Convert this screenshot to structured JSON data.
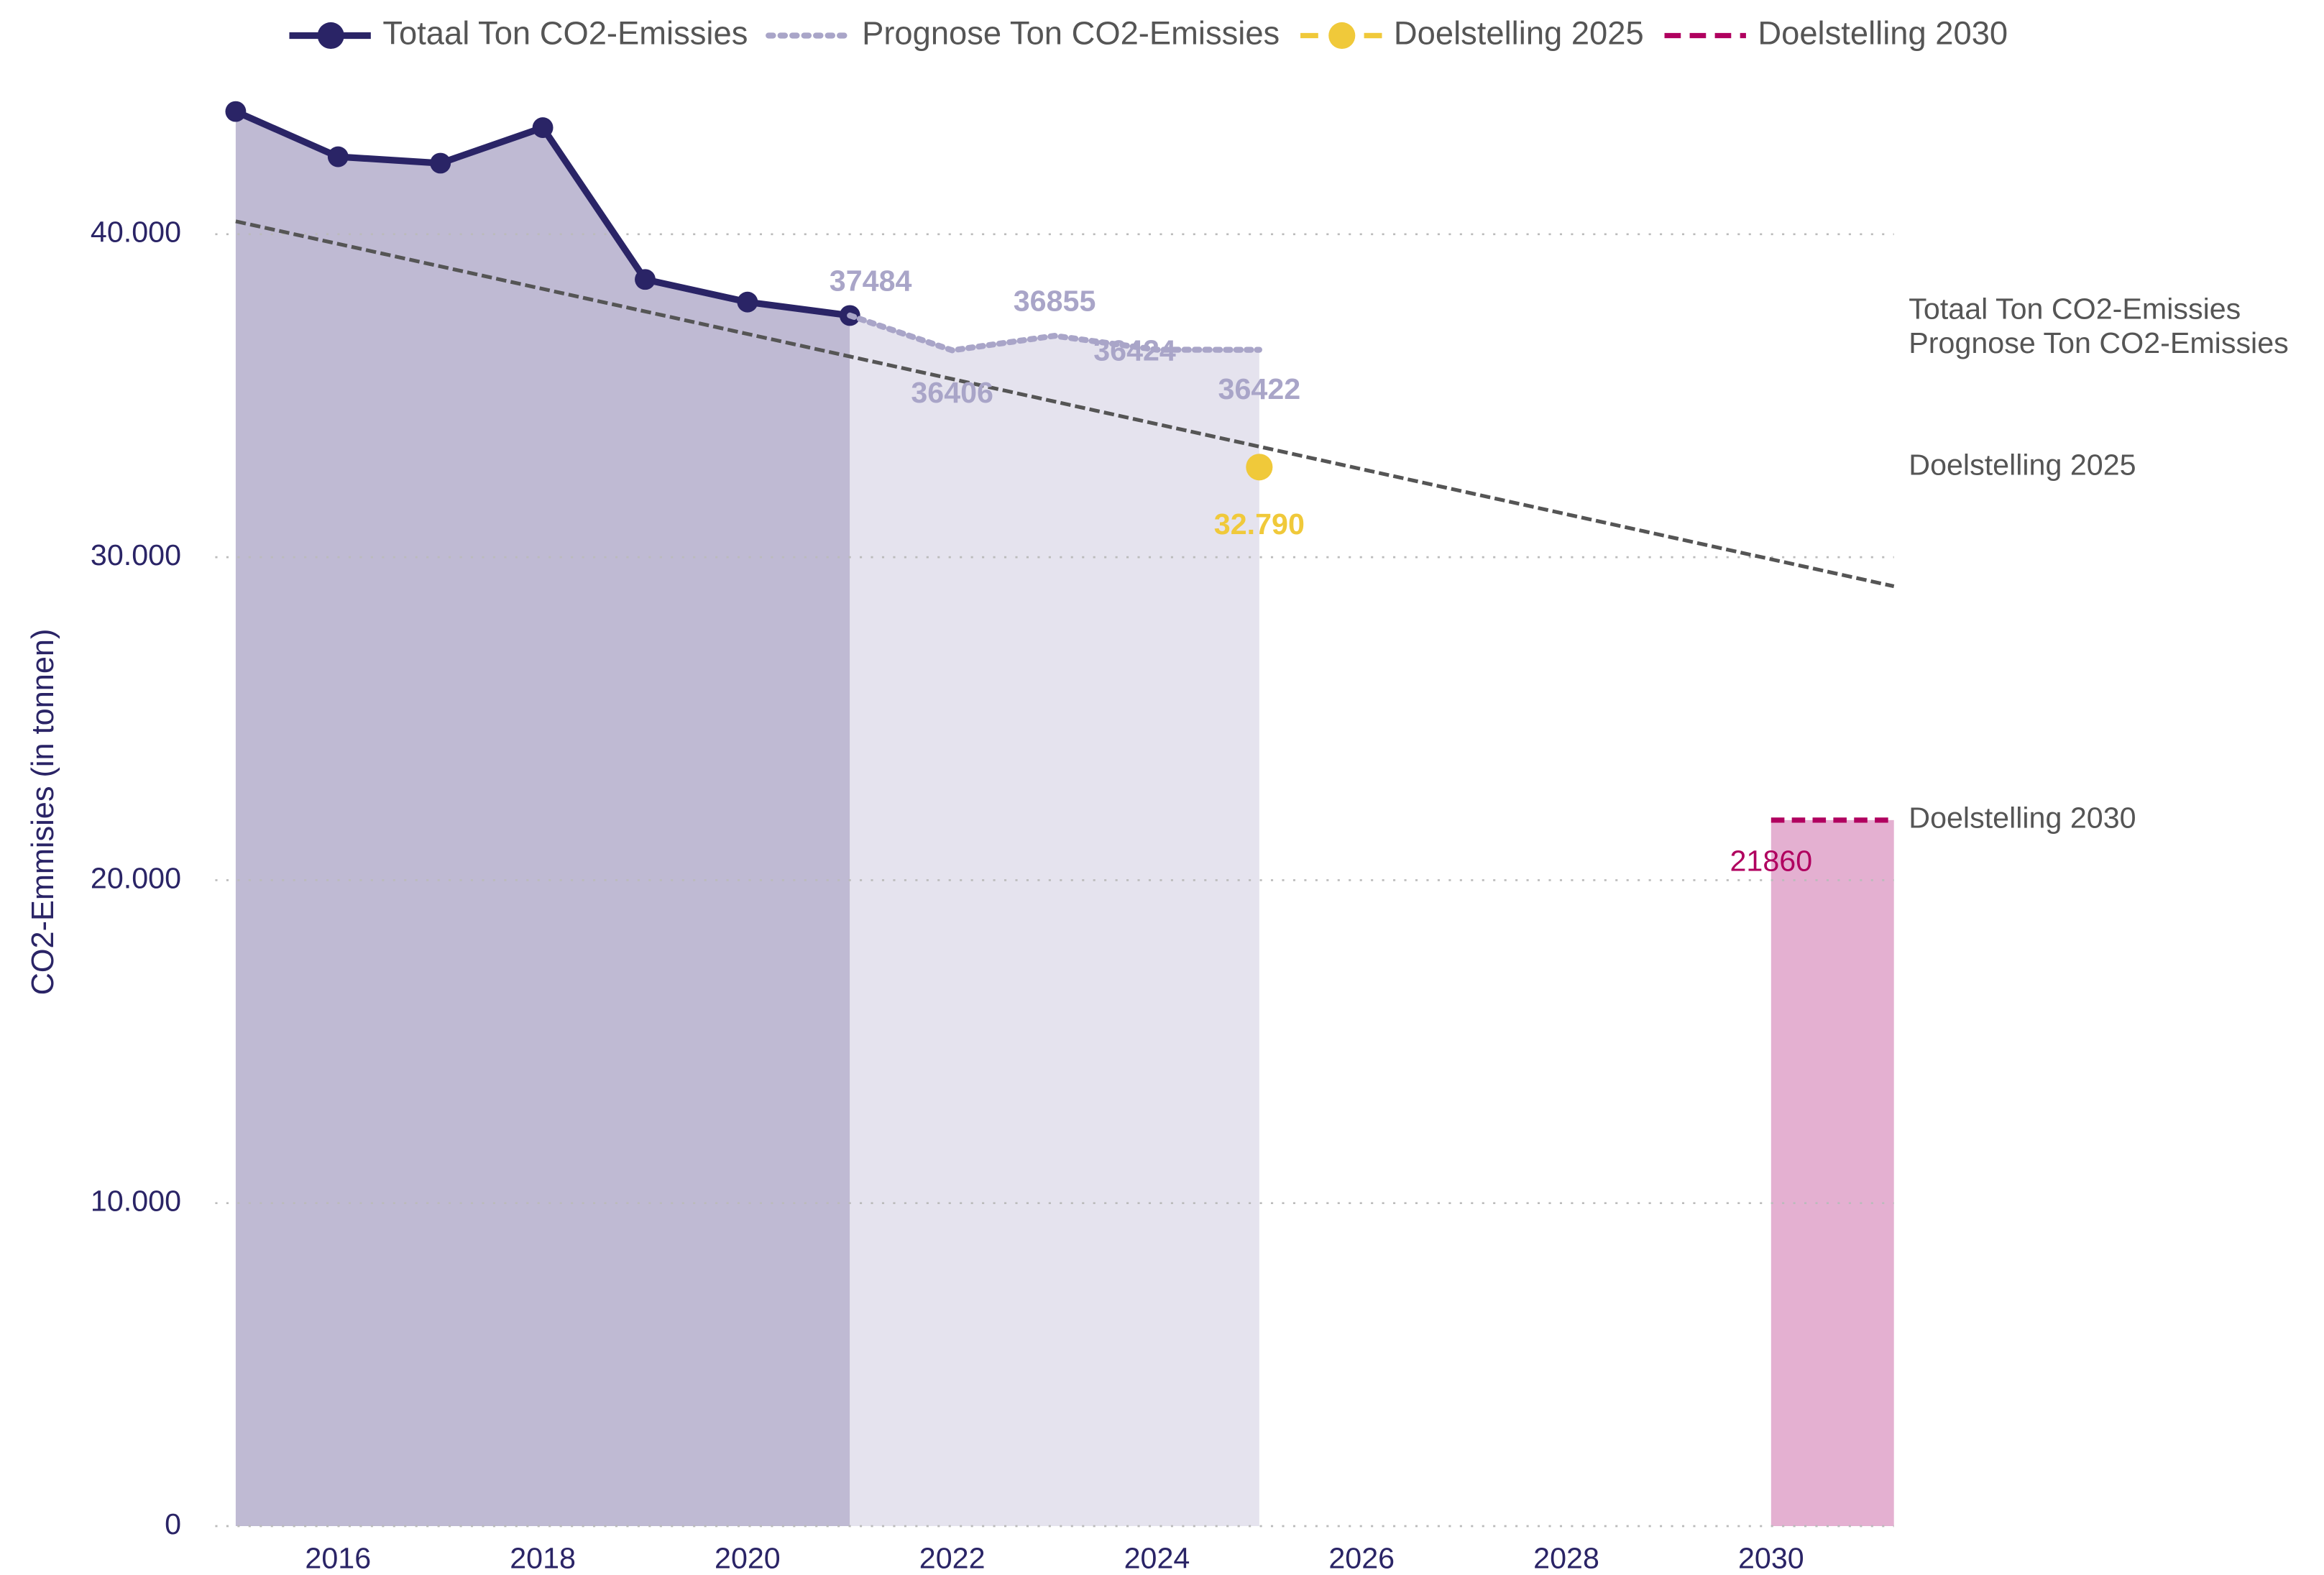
{
  "chart_data": {
    "type": "line",
    "y_axis_label": "CO2-Emmisies (in tonnen)",
    "xlim": [
      2014.8,
      2031.2
    ],
    "xticks": [
      2016,
      2018,
      2020,
      2022,
      2024,
      2026,
      2028,
      2030
    ],
    "ylim": [
      0,
      44500
    ],
    "yticks": [
      0,
      {
        "value": 10000,
        "label": "10.000"
      },
      {
        "value": 20000,
        "label": "20.000"
      },
      {
        "value": 30000,
        "label": "30.000"
      },
      {
        "value": 40000,
        "label": "40.000"
      }
    ],
    "grid": true,
    "legend": "top",
    "series": [
      {
        "name": "Totaal Ton CO2-Emissies",
        "color": "#2a2466",
        "area_color": "#bfbad3",
        "style": "solid-markers",
        "x": [
          2015,
          2016,
          2017,
          2018,
          2019,
          2020,
          2021
        ],
        "values": [
          43800,
          42400,
          42200,
          43300,
          38600,
          37900,
          37484
        ]
      },
      {
        "name": "Prognose Ton CO2-Emissies",
        "color": "#a9a5c8",
        "area_color": "#e5e3ee",
        "style": "dotted",
        "x": [
          2021,
          2022,
          2023,
          2024,
          2025
        ],
        "values": [
          37484,
          36406,
          36855,
          36424,
          36422
        ],
        "value_labels": [
          "37484",
          "36406",
          "36855",
          "36424",
          "36422"
        ]
      },
      {
        "name": "Doelstelling 2025",
        "color": "#f0c93a",
        "style": "point",
        "x": [
          2025
        ],
        "values": [
          32790
        ],
        "value_labels": [
          "32.790"
        ]
      },
      {
        "name": "Doelstelling 2030",
        "color": "#b0005f",
        "area_color": "#e4b0d1",
        "style": "dashed-target",
        "x": [
          2030
        ],
        "values": [
          21860
        ],
        "value_labels": [
          "21860"
        ]
      }
    ],
    "trendline": {
      "color": "#555555",
      "x": [
        2015,
        2031.2
      ],
      "values": [
        40400,
        29100
      ]
    }
  }
}
